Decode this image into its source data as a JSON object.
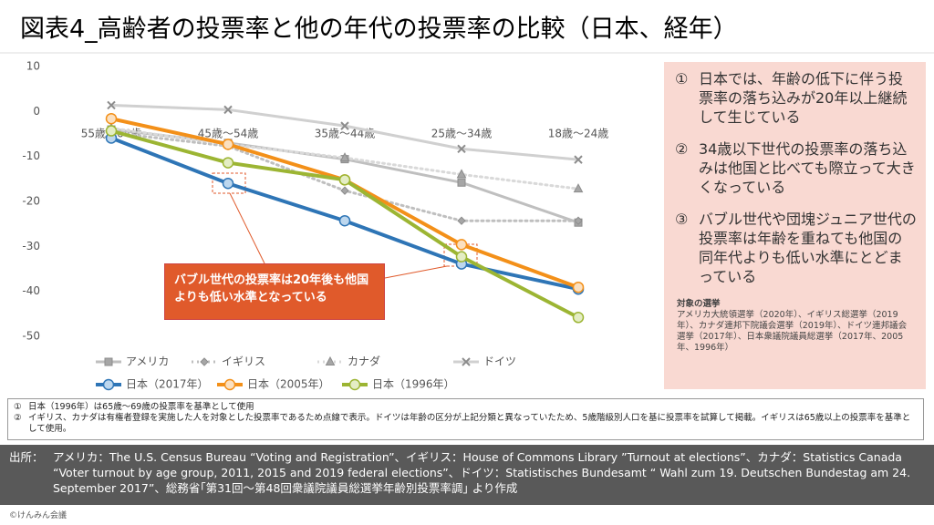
{
  "chart_data": {
    "type": "line",
    "title": "図表4_高齢者の投票率と他の年代の投票率の比較（日本、経年）",
    "categories": [
      "55歳～64歳",
      "45歳～54歳",
      "35歳～44歳",
      "25歳～34歳",
      "18歳～24歳"
    ],
    "series": [
      {
        "name": "アメリカ",
        "color": "#bfbfbf",
        "marker_color": "#a6a6a6",
        "marker": "square",
        "line_style": "solid",
        "values": [
          -4,
          -7,
          -10.6,
          -15.8,
          -24.7
        ]
      },
      {
        "name": "イギリス",
        "color": "#bfbfbf",
        "marker_color": "#a6a6a6",
        "marker": "diamond",
        "line_style": "dotted",
        "values": [
          -4.7,
          -7.7,
          -17.6,
          -24.3,
          -24.3
        ]
      },
      {
        "name": "カナダ",
        "color": "#d9d9d9",
        "marker_color": "#a6a6a6",
        "marker": "triangle",
        "line_style": "dotted",
        "values": [
          -3.7,
          -7.3,
          -10.3,
          -14,
          -17.2
        ]
      },
      {
        "name": "ドイツ",
        "color": "#d0d0d0",
        "marker_color": "#a6a6a6",
        "marker": "cross",
        "line_style": "solid",
        "values": [
          1.4,
          0.4,
          -3.2,
          -8.3,
          -10.7
        ]
      },
      {
        "name": "日本（2017年）",
        "color": "#2e75b6",
        "marker_color": "#bdd7ee",
        "marker": "circle",
        "line_style": "solid",
        "values": [
          -5.9,
          -16,
          -24.3,
          -33.9,
          -39.5
        ]
      },
      {
        "name": "日本（2005年）",
        "color": "#f39019",
        "marker_color": "#fbe0c0",
        "marker": "circle",
        "line_style": "solid",
        "values": [
          -1.6,
          -7.3,
          -15.2,
          -29.6,
          -39.1
        ]
      },
      {
        "name": "日本（1996年）",
        "color": "#9cb533",
        "marker_color": "#e4edc4",
        "marker": "circle",
        "line_style": "solid",
        "values": [
          -4.3,
          -11.4,
          -15.2,
          -32.3,
          -45.8
        ]
      }
    ],
    "ylim": [
      -50,
      10
    ],
    "yticks": [
      10,
      0,
      -10,
      -20,
      -30,
      -40,
      -50
    ],
    "grid": false,
    "annotation": "バブル世代の投票率は20年後も他国よりも低い水準となっている"
  },
  "side_notes": [
    {
      "num": "①",
      "text": "日本では、年齢の低下に伴う投票率の落ち込みが20年以上継続して生じている"
    },
    {
      "num": "②",
      "text": "34歳以下世代の投票率の落ち込みは他国と比べても際立って大きくなっている"
    },
    {
      "num": "③",
      "text": "バブル世代や団塊ジュニア世代の投票率は年齢を重ねても他国の同年代よりも低い水準にとどまっている"
    }
  ],
  "election_note": {
    "title": "対象の選挙",
    "text": "アメリカ大統領選挙（2020年）、イギリス総選挙（2019年）、カナダ連邦下院議会選挙（2019年）、ドイツ連邦議会選挙（2017年）、日本衆議院議員総選挙（2017年、2005年、1996年）"
  },
  "footnotes": [
    {
      "num": "①",
      "text": "日本（1996年）は65歳～69歳の投票率を基準として使用"
    },
    {
      "num": "②",
      "text": "イギリス、カナダは有権者登録を実施した人を対象とした投票率であるため点線で表示。ドイツは年齢の区分が上記分類と異なっていたため、5歳階級別人口を基に投票率を試算して掲載。イギリスは65歳以上の投票率を基準として使用。"
    }
  ],
  "source": {
    "label": "出所：",
    "text": "アメリカ：The U.S. Census Bureau “Voting and Registration”、イギリス：House of Commons Library ”Turnout at elections”、カナダ：Statistics Canada “Voter turnout by age group, 2011, 2015 and 2019 federal elections”、ドイツ：Statistisches Bundesamt “ Wahl zum 19. Deutschen Bundestag am 24. September 2017”、総務省｢第31回～第48回衆議院議員総選挙年齢別投票率調｣ より作成"
  },
  "copyright": "©けんみん会議"
}
